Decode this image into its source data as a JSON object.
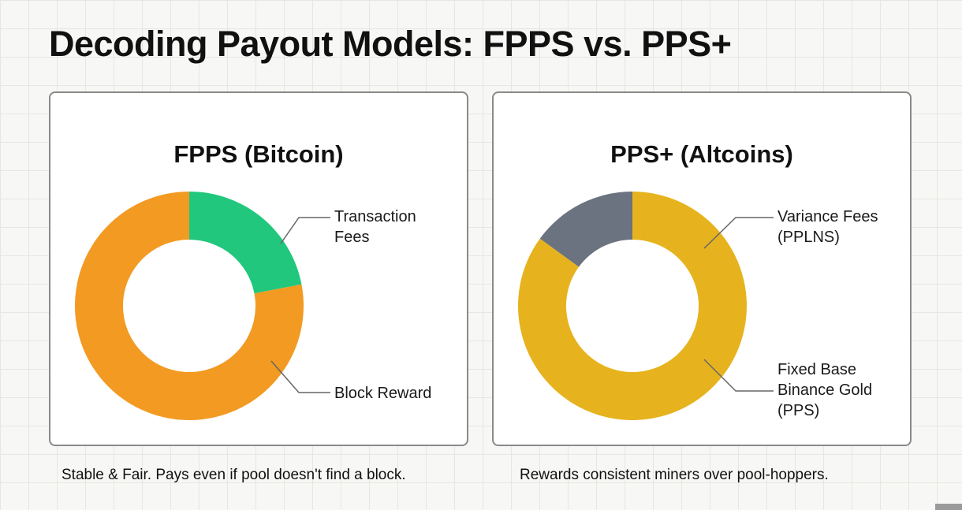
{
  "title": "Decoding Payout Models: FPPS vs. PPS+",
  "chart_data": [
    {
      "type": "pie",
      "title": "FPPS (Bitcoin)",
      "categories": [
        "Transaction Fees",
        "Block Reward"
      ],
      "label_lines": [
        [
          "Transaction",
          "Fees"
        ],
        [
          "Block Reward"
        ]
      ],
      "values": [
        22,
        78
      ],
      "colors": [
        "#20c77c",
        "#f29a22"
      ],
      "caption": "Stable & Fair. Pays even if pool doesn't find a block."
    },
    {
      "type": "pie",
      "title": "PPS+ (Altcoins)",
      "categories": [
        "Variance Fees (PPLNS)",
        "Fixed Base Binance Gold (PPS)"
      ],
      "label_lines": [
        [
          "Variance Fees",
          "(PPLNS)"
        ],
        [
          "Fixed Base",
          "Binance Gold",
          "(PPS)"
        ]
      ],
      "values": [
        15,
        85
      ],
      "colors": [
        "#6b7280",
        "#e6b31e"
      ],
      "caption": "Rewards consistent miners over pool-hoppers."
    }
  ]
}
